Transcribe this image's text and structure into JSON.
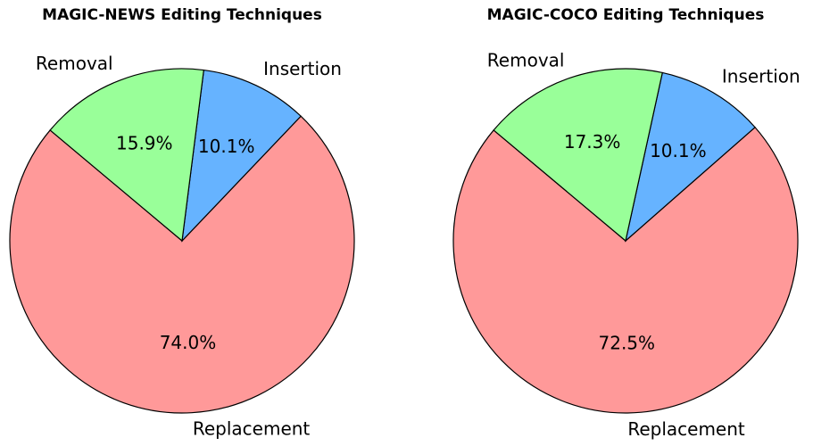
{
  "chart_data": [
    {
      "type": "pie",
      "title": "MAGIC-NEWS Editing Techniques",
      "categories": [
        "Replacement",
        "Insertion",
        "Removal"
      ],
      "values": [
        74.0,
        10.1,
        15.9
      ],
      "value_labels": [
        "74.0%",
        "10.1%",
        "15.9%"
      ],
      "colors": [
        "#ff9999",
        "#66b3ff",
        "#99ff99"
      ],
      "startangle": 140
    },
    {
      "type": "pie",
      "title": "MAGIC-COCO Editing Techniques",
      "categories": [
        "Replacement",
        "Insertion",
        "Removal"
      ],
      "values": [
        72.5,
        10.1,
        17.3
      ],
      "value_labels": [
        "72.5%",
        "10.1%",
        "17.3%"
      ],
      "colors": [
        "#ff9999",
        "#66b3ff",
        "#99ff99"
      ],
      "startangle": 140
    }
  ]
}
